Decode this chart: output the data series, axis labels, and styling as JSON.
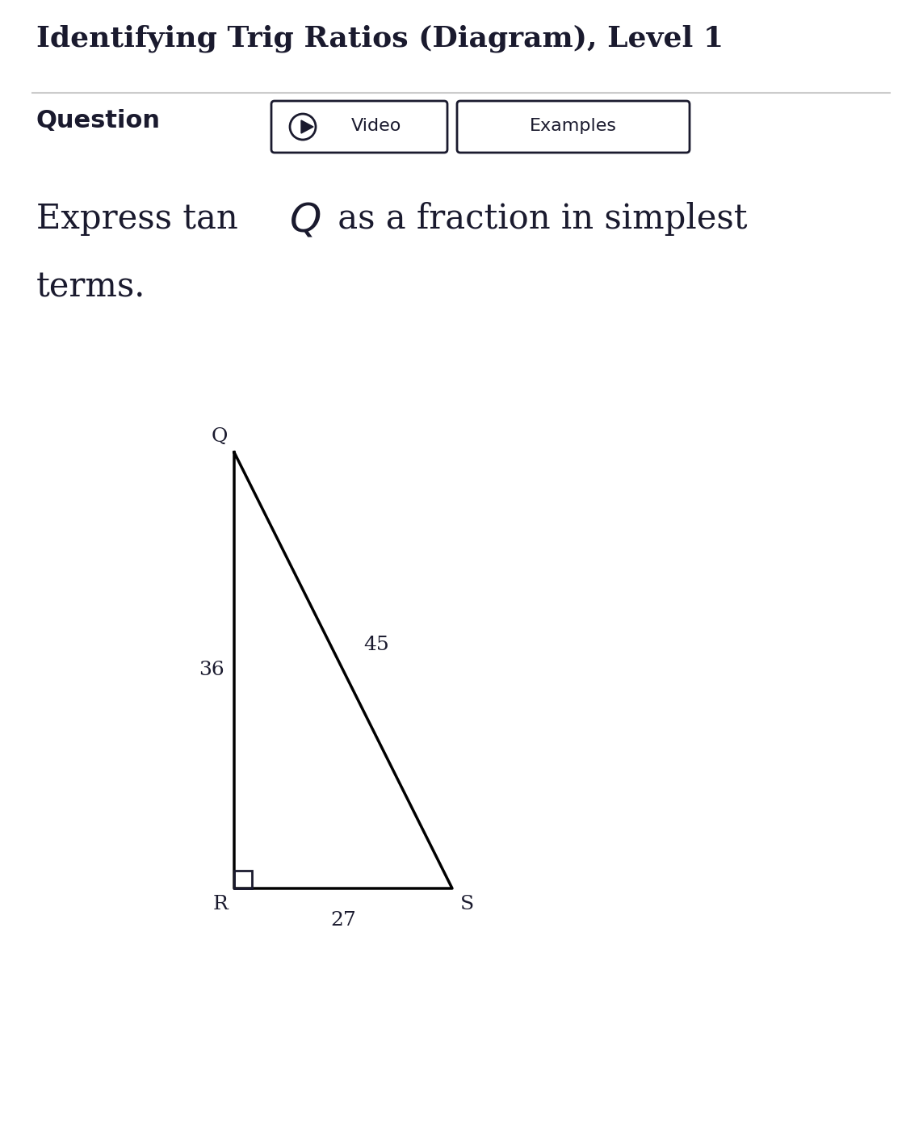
{
  "title": "Identifying Trig Ratios (Diagram), Level 1",
  "title_fontsize": 26,
  "title_fontweight": "bold",
  "title_color": "#1a1a2e",
  "background_color": "#ffffff",
  "separator_color": "#cccccc",
  "question_label": "Question",
  "question_fontsize": 22,
  "question_fontweight": "bold",
  "button_video": "Video",
  "button_examples": "Examples",
  "button_fontsize": 16,
  "problem_fontsize": 30,
  "triangle": {
    "Q": [
      0.3,
      0.76
    ],
    "R": [
      0.3,
      0.22
    ],
    "S": [
      0.72,
      0.22
    ],
    "side_QR": "36",
    "side_QS": "45",
    "side_RS": "27",
    "label_fontsize": 18
  }
}
